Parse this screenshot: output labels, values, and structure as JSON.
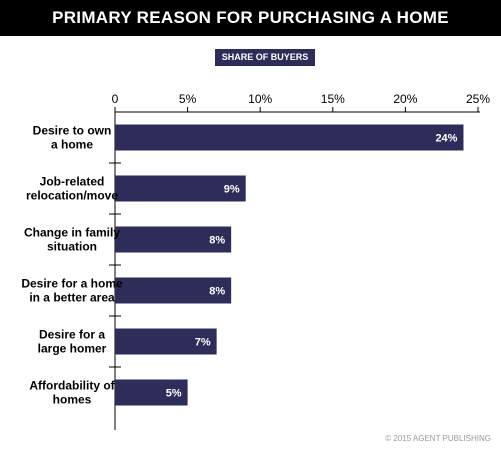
{
  "chart_data": {
    "type": "bar",
    "orientation": "horizontal",
    "title": "PRIMARY REASON FOR PURCHASING A HOME",
    "legend": "SHARE OF BUYERS",
    "categories": [
      [
        "Desire to own",
        "a home"
      ],
      [
        "Job-related",
        "relocation/move"
      ],
      [
        "Change in family",
        "situation"
      ],
      [
        "Desire for a home",
        "in a better area"
      ],
      [
        "Desire for a",
        "large homer"
      ],
      [
        "Affordability of",
        "homes"
      ]
    ],
    "values": [
      24,
      9,
      8,
      8,
      7,
      5
    ],
    "value_labels": [
      "24%",
      "9%",
      "8%",
      "8%",
      "7%",
      "5%"
    ],
    "x_ticks": [
      "0",
      "5%",
      "10%",
      "15%",
      "20%",
      "25%"
    ],
    "xlim": [
      0,
      25
    ],
    "grid": false,
    "colors": {
      "bar": "#2e2d5a",
      "title_bar": "#000000",
      "legend_box": "#2e2d5a"
    }
  },
  "footer": {
    "watermark": "© 2015 AGENT PUBLISHING"
  }
}
